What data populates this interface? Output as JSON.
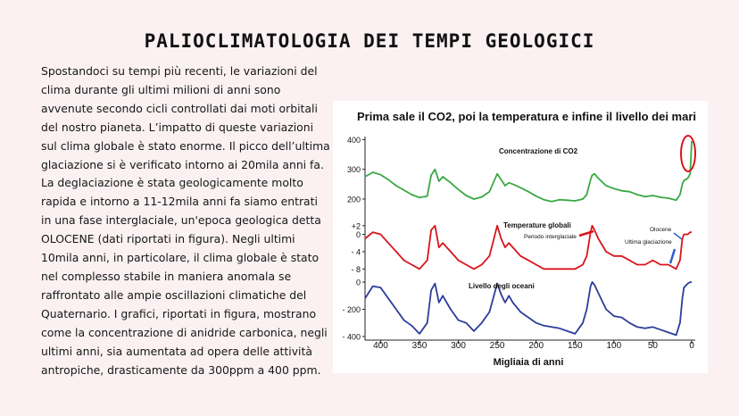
{
  "page": {
    "title": "PALIOCLIMATOLOGIA DEI TEMPI GEOLOGICI",
    "paragraph": "Spostandoci su tempi più recenti, le variazioni del clima durante gli ultimi milioni di anni sono avvenute secondo cicli controllati dai moti orbitali del nostro pianeta. L’impatto di queste variazioni sul clima globale è stato enorme. Il picco dell’ultima glaciazione si è verificato intorno ai 20mila anni fa. La deglaciazione è stata geologicamente molto rapida e intorno a 11-12mila anni fa siamo entrati in una fase interglaciale, un'epoca geologica detta OLOCENE (dati riportati in figura). Negli ultimi 10mila anni, in particolare,  il clima globale è stato nel complesso stabile in maniera anomala se raffrontato alle ampie oscillazioni climatiche del Quaternario.  I grafici, riportati in figura, mostrano come la concentrazione di anidride carbonica, negli ultimi anni, sia aumentata ad opera delle attività antropiche,  drasticamente da 300ppm a 400 ppm."
  },
  "figure": {
    "title": "Prima sale il CO2, poi la temperatura e infine il livello dei mari",
    "xlabel": "Migliaia di anni",
    "x_ticks": [
      "400",
      "350",
      "300",
      "250",
      "200",
      "150",
      "100",
      "50",
      "0"
    ],
    "annotations": {
      "interglacial": "Periodo interglaciale",
      "olocene": "Olocene",
      "last_glaciation": "Ultima glaciazione"
    },
    "colors": {
      "co2": "#3aa843",
      "temp": "#d9141c",
      "sea": "#2c3c9a",
      "highlight": "#d9141c"
    }
  },
  "chart_data": [
    {
      "type": "line",
      "title": "Concentrazione di CO2",
      "y_ticks": [
        "400",
        "300",
        "200"
      ],
      "ylim": [
        170,
        410
      ],
      "x": [
        420,
        410,
        400,
        390,
        380,
        370,
        360,
        350,
        340,
        335,
        330,
        325,
        320,
        310,
        300,
        290,
        280,
        270,
        260,
        250,
        245,
        240,
        235,
        230,
        220,
        210,
        200,
        190,
        180,
        170,
        160,
        150,
        140,
        135,
        130,
        128,
        125,
        120,
        110,
        100,
        90,
        80,
        70,
        60,
        50,
        40,
        30,
        20,
        15,
        12,
        10,
        5,
        2,
        0
      ],
      "series": [
        {
          "values": [
            275,
            290,
            282,
            265,
            245,
            230,
            215,
            205,
            210,
            280,
            300,
            260,
            275,
            255,
            232,
            212,
            200,
            207,
            225,
            285,
            265,
            245,
            255,
            250,
            238,
            225,
            210,
            198,
            192,
            198,
            196,
            194,
            200,
            215,
            265,
            280,
            285,
            270,
            245,
            235,
            228,
            225,
            215,
            208,
            212,
            206,
            203,
            196,
            215,
            250,
            262,
            270,
            285,
            395
          ]
        }
      ]
    },
    {
      "type": "line",
      "title": "Temperature globali",
      "y_ticks": [
        "+2",
        "0",
        "- 4",
        "- 8"
      ],
      "ylim": [
        -10,
        3
      ],
      "x": [
        420,
        410,
        400,
        390,
        380,
        370,
        360,
        350,
        340,
        335,
        330,
        325,
        320,
        310,
        300,
        290,
        280,
        270,
        260,
        250,
        245,
        240,
        235,
        230,
        220,
        210,
        200,
        190,
        180,
        170,
        160,
        150,
        140,
        135,
        130,
        128,
        125,
        120,
        110,
        100,
        90,
        80,
        70,
        60,
        50,
        40,
        30,
        20,
        15,
        12,
        10,
        5,
        2,
        0
      ],
      "series": [
        {
          "values": [
            -1,
            0.5,
            0,
            -2,
            -4,
            -6,
            -7,
            -8,
            -6,
            1,
            2,
            -3,
            -2,
            -4,
            -6,
            -7,
            -8,
            -7,
            -5,
            2,
            -1,
            -3,
            -2,
            -3,
            -5,
            -6,
            -7,
            -8,
            -8,
            -8,
            -8,
            -8,
            -7,
            -5,
            0.5,
            2,
            1,
            -1,
            -4,
            -5,
            -5,
            -6,
            -7,
            -7,
            -6,
            -7,
            -7,
            -8,
            -6,
            -1,
            0,
            0,
            0.5,
            0.5
          ]
        }
      ]
    },
    {
      "type": "line",
      "title": "Livello degli oceani",
      "y_ticks": [
        "0",
        "- 200",
        "- 400"
      ],
      "ylim": [
        -420,
        20
      ],
      "x": [
        420,
        410,
        400,
        390,
        380,
        370,
        360,
        350,
        340,
        335,
        330,
        325,
        320,
        310,
        300,
        290,
        280,
        270,
        260,
        250,
        245,
        240,
        235,
        230,
        220,
        210,
        200,
        190,
        180,
        170,
        160,
        150,
        140,
        135,
        130,
        128,
        125,
        120,
        110,
        100,
        90,
        80,
        70,
        60,
        50,
        40,
        30,
        20,
        15,
        12,
        10,
        5,
        2,
        0
      ],
      "series": [
        {
          "values": [
            -120,
            -30,
            -40,
            -120,
            -200,
            -280,
            -320,
            -380,
            -300,
            -60,
            -10,
            -150,
            -100,
            -200,
            -280,
            -300,
            -360,
            -300,
            -220,
            -10,
            -90,
            -150,
            -100,
            -150,
            -220,
            -260,
            -300,
            -320,
            -330,
            -340,
            -360,
            -380,
            -300,
            -200,
            -30,
            0,
            -20,
            -80,
            -200,
            -250,
            -260,
            -300,
            -330,
            -340,
            -330,
            -350,
            -370,
            -390,
            -300,
            -120,
            -40,
            -10,
            0,
            0
          ]
        }
      ]
    }
  ]
}
